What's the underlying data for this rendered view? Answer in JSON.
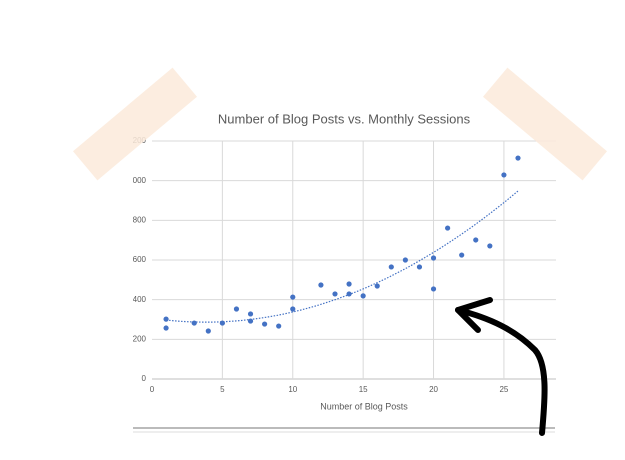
{
  "chart_data": {
    "type": "scatter",
    "title": "Number of Blog Posts vs. Monthly Sessions",
    "xlabel": "Number of Blog Posts",
    "x": [
      1,
      1,
      3,
      4,
      5,
      6,
      7,
      7,
      8,
      9,
      10,
      10,
      12,
      13,
      14,
      14,
      15,
      16,
      17,
      18,
      19,
      20,
      20,
      21,
      22,
      23,
      24,
      25,
      26
    ],
    "series": [
      {
        "color": "#4472c4",
        "values": [
          302,
          257,
          282,
          242,
          282,
          353,
          328,
          292,
          277,
          267,
          413,
          353,
          474,
          429,
          479,
          429,
          419,
          469,
          565,
          600,
          565,
          610,
          454,
          761,
          625,
          701,
          671,
          1029,
          1114
        ]
      }
    ],
    "xlim": [
      0,
      28.7
    ],
    "xticks": [
      0,
      5,
      10,
      15,
      20,
      25
    ],
    "ylim": [
      0,
      1200
    ],
    "yticks": [
      0,
      200,
      400,
      600,
      800,
      1000,
      1200
    ],
    "grid": true,
    "trendline": "polynomial"
  }
}
